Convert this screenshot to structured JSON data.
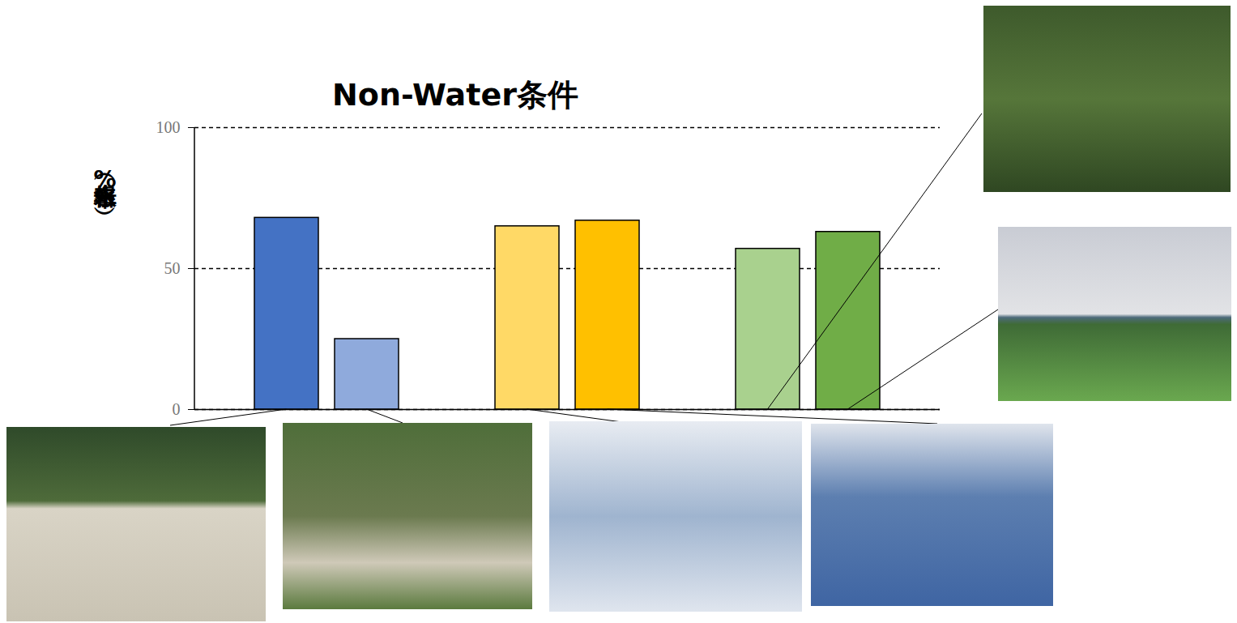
{
  "chart_data": {
    "type": "bar",
    "title": "Non-Water条件",
    "y_label": "水報告率（%）",
    "categories": [
      null,
      null,
      null,
      null,
      null,
      null,
      null,
      null
    ],
    "values": [
      68,
      25,
      null,
      65,
      67,
      null,
      57,
      63
    ],
    "colors": [
      "#4472c4",
      "#8faadc",
      null,
      "#ffd966",
      "#ffc000",
      null,
      "#a9d18e",
      "#70ad47"
    ],
    "ylim": [
      0,
      100
    ],
    "yticks": [
      0,
      50,
      100
    ],
    "grid": true
  }
}
